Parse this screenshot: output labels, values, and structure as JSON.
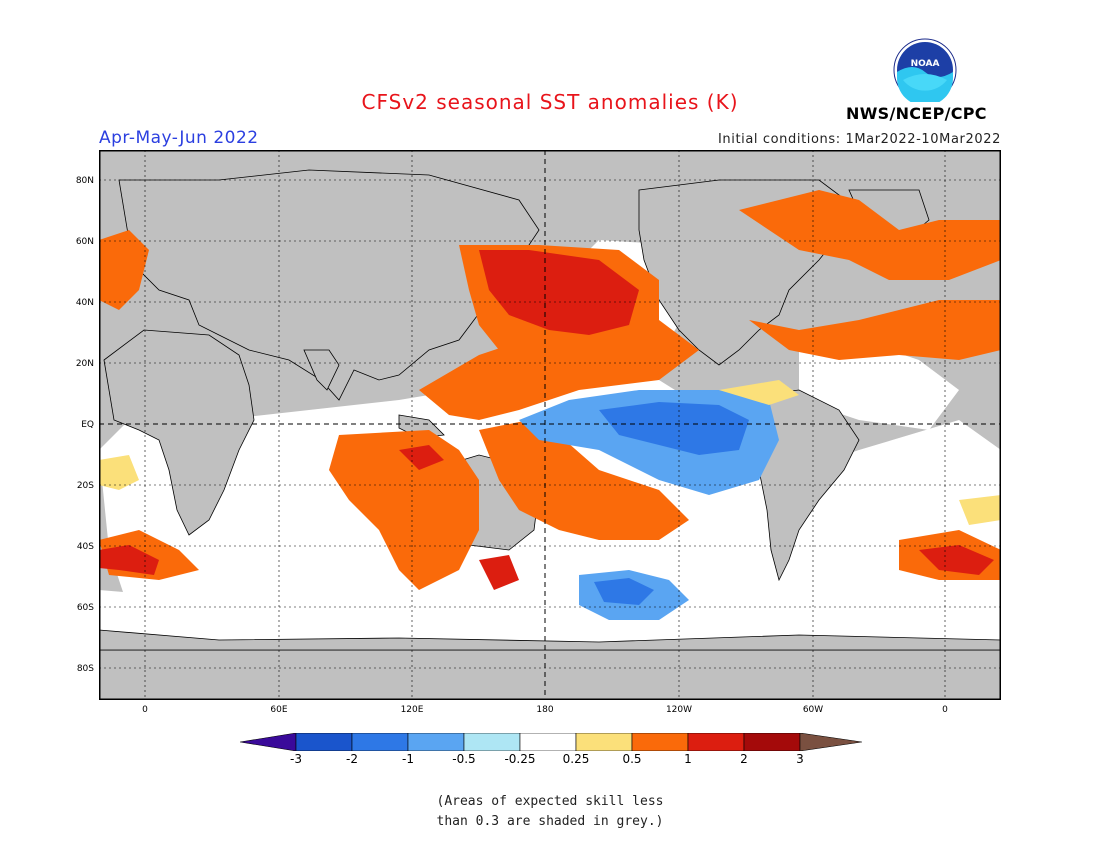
{
  "header": {
    "title": "CFSv2 seasonal SST anomalies (K)",
    "period": "Apr-May-Jun 2022",
    "initial_conditions": "Initial conditions: 1Mar2022-10Mar2022",
    "agency": "NWS/NCEP/CPC",
    "logo_text": "NOAA"
  },
  "map": {
    "lat_ticks": [
      "80N",
      "60N",
      "40N",
      "20N",
      "EQ",
      "20S",
      "40S",
      "60S",
      "80S"
    ],
    "lon_ticks": [
      "0",
      "60E",
      "120E",
      "180",
      "120W",
      "60W",
      "0"
    ],
    "colors": {
      "land_low_skill": "#c0c0c0",
      "ocean_neutral": "#ffffff",
      "frame": "#000000"
    }
  },
  "legend": {
    "labels": [
      "-3",
      "-2",
      "-1",
      "-0.5",
      "-0.25",
      "0.25",
      "0.5",
      "1",
      "2",
      "3"
    ],
    "colors": [
      "#3a0a9a",
      "#1a55cc",
      "#2e78e6",
      "#5aa5f2",
      "#aee6f4",
      "#ffffff",
      "#fbe07a",
      "#fa6a0a",
      "#dc1e10",
      "#a40a0a",
      "#7a5040"
    ]
  },
  "footnote": {
    "line1": "(Areas of expected skill less",
    "line2": "than 0.3 are shaded in grey.)"
  }
}
